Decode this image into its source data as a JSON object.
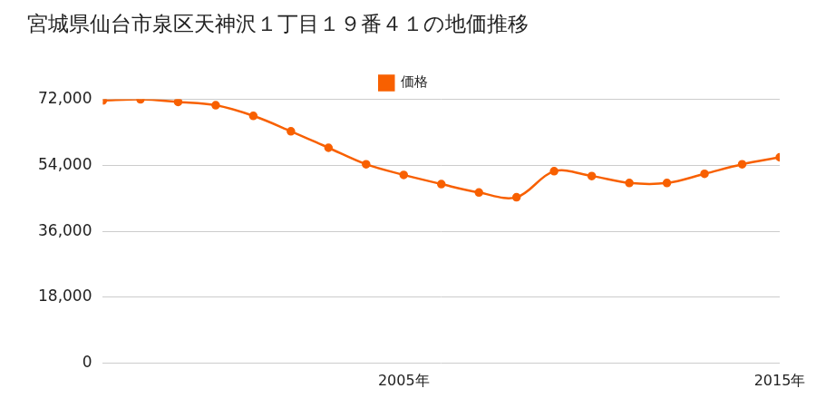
{
  "chart_data": {
    "type": "line",
    "title": "宮城県仙台市泉区天神沢１丁目１９番４１の地価推移",
    "categories": [
      null,
      null,
      null,
      null,
      null,
      null,
      null,
      null,
      "2005年",
      null,
      null,
      null,
      null,
      null,
      null,
      null,
      null,
      null,
      "2015年"
    ],
    "series": [
      {
        "name": "価格",
        "color": "#f86000",
        "marker": "circle",
        "values": [
          71700,
          72000,
          71300,
          70400,
          67500,
          63300,
          58800,
          54300,
          51400,
          48900,
          46600,
          45300,
          52400,
          51100,
          49200,
          49200,
          51700,
          54300,
          56200
        ]
      }
    ],
    "ylim": [
      0,
      72000
    ],
    "yticks": [
      0,
      {
        "value": 18000,
        "label": "18,000"
      },
      {
        "value": 36000,
        "label": "36,000"
      },
      {
        "value": 54000,
        "label": "54,000"
      },
      {
        "value": 72000,
        "label": "72,000"
      }
    ],
    "grid": true,
    "legend": "top"
  }
}
